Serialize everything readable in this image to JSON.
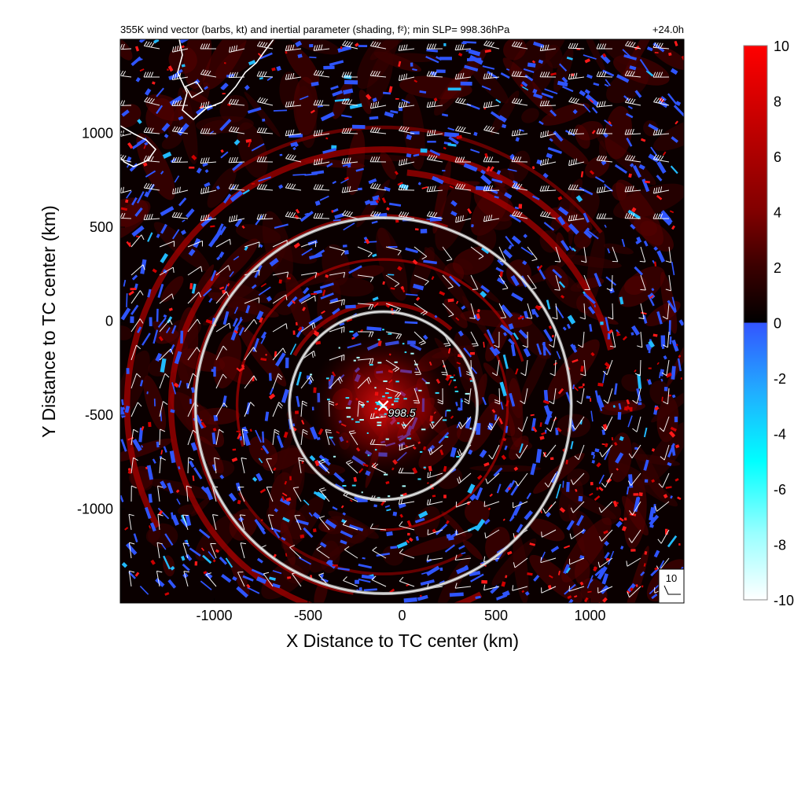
{
  "chart_data": {
    "type": "heatmap",
    "title": "355K wind vector (barbs, kt) and inertial parameter (shading, f²); min SLP= 998.36hPa",
    "forecast_time": "+24.0h",
    "xlabel": "X Distance to TC center (km)",
    "ylabel": "Y Distance to TC center (km)",
    "xlim": [
      -1500,
      1500
    ],
    "ylim": [
      -1500,
      1500
    ],
    "x_ticks": [
      -1000,
      -500,
      0,
      500,
      1000
    ],
    "y_ticks": [
      1000,
      500,
      0,
      -500,
      -1000
    ],
    "x_tick_labels": [
      "-1000",
      "-500",
      "0",
      "500",
      "1000"
    ],
    "y_tick_labels": [
      "1000",
      "500",
      "0",
      "-500",
      "-1000"
    ],
    "colorbar": {
      "min": -10,
      "max": 10,
      "ticks": [
        10,
        8,
        6,
        4,
        2,
        0,
        -2,
        -4,
        -6,
        -8,
        -10
      ],
      "tick_labels": [
        "10",
        "8",
        "6",
        "4",
        "2",
        "0",
        "-2",
        "-4",
        "-6",
        "-8",
        "-10"
      ],
      "colors_positive": [
        "#000000",
        "#3a0000",
        "#800000",
        "#c00000",
        "#ff0000"
      ],
      "colors_negative": [
        "#3355ff",
        "#00ccff",
        "#00ffff",
        "#aaffff",
        "#ffffff"
      ]
    },
    "tc_center": {
      "x": -100,
      "y": -450,
      "label": "998.5"
    },
    "range_rings_km": [
      500,
      1000
    ],
    "reference_barb": {
      "label": "10",
      "speed_kt": 10
    },
    "grid": false,
    "coastline": true
  }
}
